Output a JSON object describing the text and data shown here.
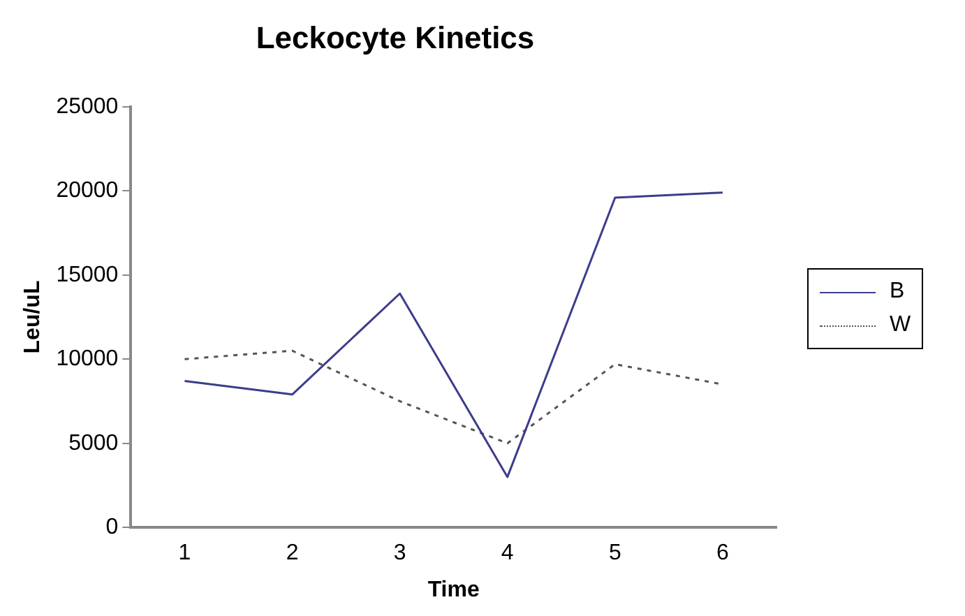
{
  "chart_data": {
    "type": "line",
    "title": "Leckocyte Kinetics",
    "xlabel": "Time",
    "ylabel": "Leu/uL",
    "categories": [
      "1",
      "2",
      "3",
      "4",
      "5",
      "6"
    ],
    "series": [
      {
        "name": "B",
        "color": "#3c3c8c",
        "values": [
          8700,
          7900,
          13900,
          3000,
          19600,
          19900
        ],
        "line_style": "solid"
      },
      {
        "name": "W",
        "color": "#555555",
        "values": [
          10000,
          10500,
          7500,
          5000,
          9700,
          8500
        ],
        "line_style": "dotted"
      }
    ],
    "ylim": [
      0,
      25000
    ],
    "yticks": [
      0,
      5000,
      10000,
      15000,
      20000,
      25000
    ],
    "grid": false,
    "legend": "right",
    "marker": "none"
  }
}
